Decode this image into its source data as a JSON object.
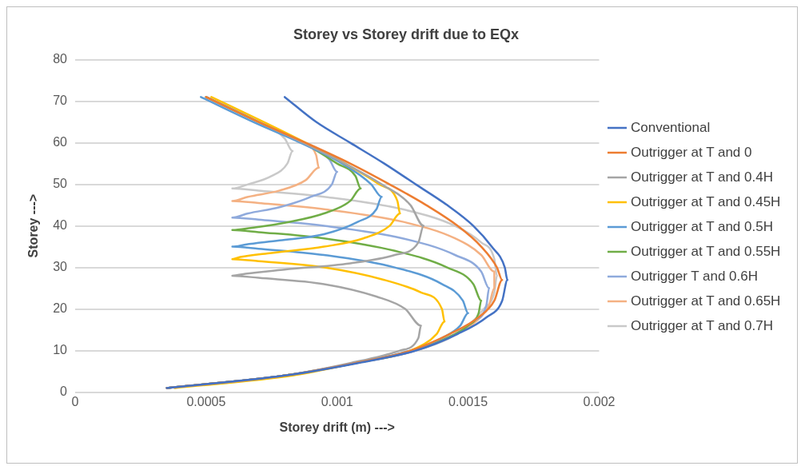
{
  "chart_data": {
    "type": "line",
    "title": "Storey vs Storey drift due to EQx",
    "xlabel": "Storey drift (m) --->",
    "ylabel": "Storey --->",
    "xlim": [
      0,
      0.002
    ],
    "xticks": [
      0,
      0.0005,
      0.001,
      0.0015,
      0.002
    ],
    "ylim": [
      0,
      80
    ],
    "yticks": [
      0,
      10,
      20,
      30,
      40,
      50,
      60,
      70,
      80
    ],
    "grid": "y",
    "legend": "right",
    "marker": "none",
    "line_style": "solid",
    "series": [
      {
        "name": "Conventional",
        "color": "#4472c4",
        "x": [
          0.0008,
          0.00092,
          0.00105,
          0.00118,
          0.0013,
          0.00142,
          0.00152,
          0.00159,
          0.00164,
          0.00165,
          0.00163,
          0.00157,
          0.00146,
          0.0013,
          0.00108,
          0.0008,
          0.00035
        ],
        "values": [
          71,
          65,
          60,
          55,
          50,
          45,
          40,
          35,
          30,
          27,
          22,
          18,
          14,
          10,
          7,
          4,
          1
        ]
      },
      {
        "name": "Outrigger at T and 0",
        "color": "#ed7d31",
        "x": [
          0.0005,
          0.0007,
          0.00088,
          0.00105,
          0.0012,
          0.00134,
          0.00146,
          0.00155,
          0.00161,
          0.00163,
          0.0016,
          0.00154,
          0.00143,
          0.00128,
          0.00107,
          0.0008,
          0.00035
        ],
        "values": [
          71,
          65,
          60,
          55,
          50,
          45,
          40,
          35,
          30,
          27,
          22,
          18,
          14,
          10,
          7,
          4,
          1
        ]
      },
      {
        "name": "Outrigger at T and 0.4H",
        "color": "#a5a5a5",
        "x": [
          0.0005,
          0.0007,
          0.00087,
          0.00103,
          0.00117,
          0.00128,
          0.00133,
          0.00131,
          0.00122,
          0.00105,
          0.0008,
          0.00065,
          0.0006,
          0.0007,
          0.00095,
          0.00115,
          0.00126,
          0.00132,
          0.00131,
          0.00124,
          0.00105,
          0.0008,
          0.00035
        ],
        "values": [
          71,
          65,
          60,
          55,
          50,
          45,
          40,
          36,
          33,
          31,
          29.5,
          28.5,
          28,
          27.5,
          26,
          23,
          20,
          16,
          13,
          10,
          7,
          4,
          1
        ]
      },
      {
        "name": "Outrigger at T and 0.45H",
        "color": "#ffc000",
        "x": [
          0.00052,
          0.00072,
          0.00088,
          0.00103,
          0.00116,
          0.00123,
          0.00124,
          0.0012,
          0.0011,
          0.00095,
          0.00075,
          0.00063,
          0.0006,
          0.0007,
          0.00095,
          0.00118,
          0.00132,
          0.0014,
          0.00141,
          0.00138,
          0.00128,
          0.00107,
          0.00083,
          0.00038
        ],
        "values": [
          71,
          65,
          60,
          55,
          50,
          46,
          43,
          40,
          37,
          35,
          33.5,
          32.5,
          32,
          31.5,
          30,
          27,
          24,
          20,
          17,
          14,
          10,
          7,
          4,
          1
        ]
      },
      {
        "name": "Outrigger at T and 0.5H",
        "color": "#5b9bd5",
        "x": [
          0.00048,
          0.00068,
          0.00086,
          0.00102,
          0.00113,
          0.00117,
          0.00115,
          0.00108,
          0.00095,
          0.00078,
          0.00065,
          0.0006,
          0.0007,
          0.00095,
          0.00122,
          0.0014,
          0.00148,
          0.0015,
          0.00147,
          0.0014,
          0.00128,
          0.00107,
          0.0008,
          0.00035
        ],
        "values": [
          71,
          65,
          60,
          55,
          50,
          47,
          44,
          41,
          38,
          36.5,
          35.5,
          35,
          34.5,
          33,
          30,
          26,
          22,
          19,
          16,
          13,
          10,
          7,
          4,
          1
        ]
      },
      {
        "name": "Outrigger at T and 0.55H",
        "color": "#70ad47",
        "x": [
          0.0005,
          0.0007,
          0.00087,
          0.001,
          0.00107,
          0.00109,
          0.00105,
          0.00095,
          0.00082,
          0.00067,
          0.0006,
          0.0007,
          0.00095,
          0.00122,
          0.00142,
          0.00152,
          0.00155,
          0.00154,
          0.0015,
          0.00142,
          0.00129,
          0.00107,
          0.0008,
          0.00035
        ],
        "values": [
          71,
          65,
          60,
          55,
          52,
          49,
          46,
          43,
          41,
          39.5,
          39,
          38.5,
          37,
          34,
          30,
          26,
          22,
          19,
          16,
          13,
          10,
          7,
          4,
          1
        ]
      },
      {
        "name": "Outrigger T and 0.6H",
        "color": "#8faadc",
        "x": [
          0.0005,
          0.0007,
          0.00087,
          0.00097,
          0.001,
          0.00098,
          0.0009,
          0.00078,
          0.00066,
          0.0006,
          0.0007,
          0.00095,
          0.00125,
          0.00145,
          0.00155,
          0.00158,
          0.00157,
          0.00152,
          0.00145,
          0.0013,
          0.00107,
          0.0008,
          0.00035
        ],
        "values": [
          71,
          65,
          60,
          56,
          53,
          50,
          47,
          44.5,
          43,
          42,
          41.5,
          40,
          37,
          33,
          29,
          25,
          21,
          17,
          14,
          10,
          7,
          4,
          1
        ]
      },
      {
        "name": "Outrigger at T and 0.65H",
        "color": "#f4b183",
        "x": [
          0.0005,
          0.0007,
          0.00087,
          0.00092,
          0.00093,
          0.00088,
          0.00078,
          0.00066,
          0.0006,
          0.0007,
          0.00095,
          0.00125,
          0.00145,
          0.00155,
          0.0016,
          0.0016,
          0.00158,
          0.00153,
          0.00145,
          0.0013,
          0.00107,
          0.0008,
          0.00035
        ],
        "values": [
          71,
          65,
          60,
          57,
          54,
          51,
          48.5,
          47,
          46,
          45.5,
          44,
          41,
          37,
          33,
          29,
          25,
          21,
          17,
          14,
          10,
          7,
          4,
          1
        ]
      },
      {
        "name": "Outrigger at T and 0.7H",
        "color": "#c9c9c9",
        "x": [
          0.0005,
          0.0007,
          0.0008,
          0.00083,
          0.00081,
          0.00075,
          0.00066,
          0.0006,
          0.0007,
          0.00095,
          0.00125,
          0.00145,
          0.00155,
          0.0016,
          0.00161,
          0.0016,
          0.00156,
          0.0015,
          0.00143,
          0.0013,
          0.00107,
          0.0008,
          0.00035
        ],
        "values": [
          71,
          65,
          61,
          58,
          55,
          52,
          50,
          49,
          48.5,
          47,
          44,
          40,
          36,
          32,
          28,
          24,
          20,
          16,
          13,
          10,
          7,
          4,
          1
        ]
      }
    ]
  }
}
